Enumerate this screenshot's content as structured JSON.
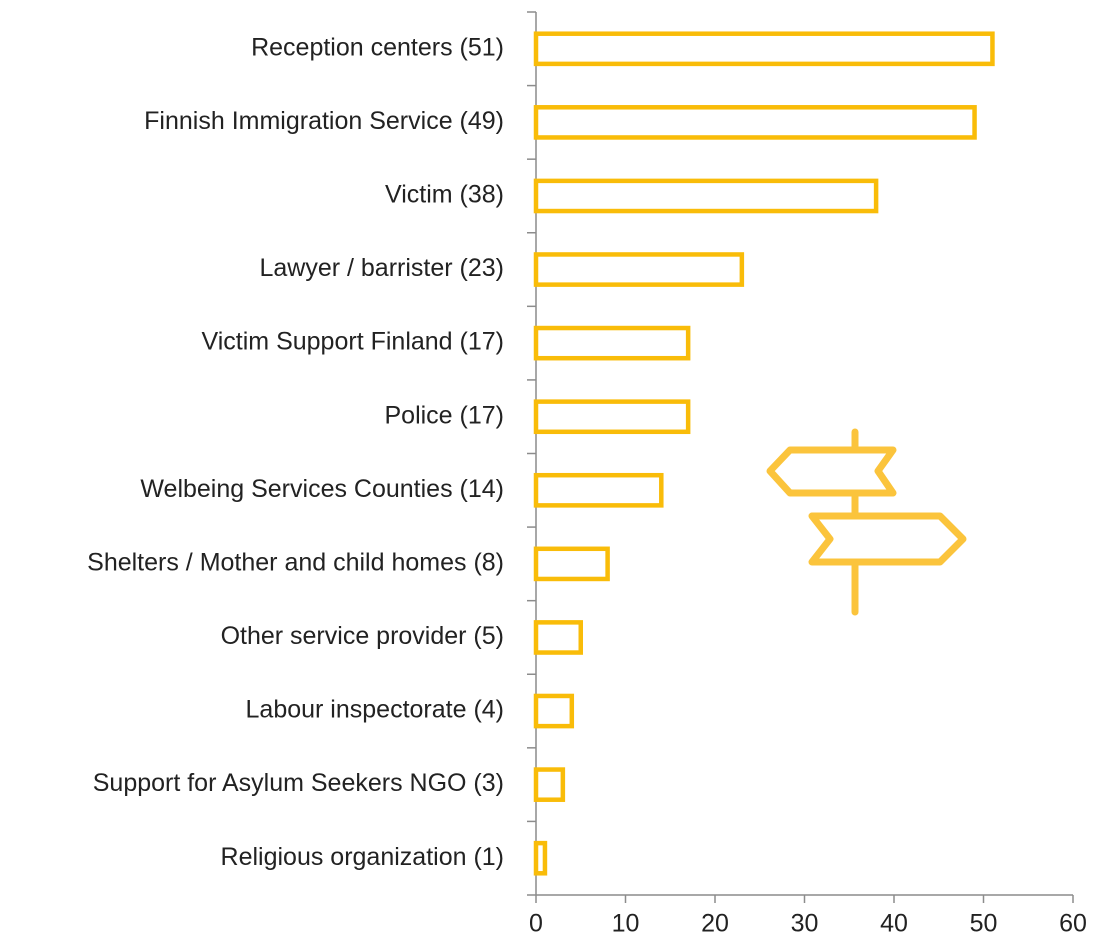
{
  "chart_data": {
    "type": "bar",
    "orientation": "horizontal",
    "categories": [
      "Reception centers (51)",
      "Finnish Immigration Service (49)",
      "Victim (38)",
      "Lawyer / barrister (23)",
      "Victim Support Finland (17)",
      "Police (17)",
      "Welbeing Services Counties (14)",
      "Shelters / Mother and child homes (8)",
      "Other service provider (5)",
      "Labour inspectorate (4)",
      "Support for Asylum Seekers NGO (3)",
      "Religious organization (1)"
    ],
    "values": [
      51,
      49,
      38,
      23,
      17,
      17,
      14,
      8,
      5,
      4,
      3,
      1
    ],
    "color": "#f9bc09",
    "xlim": [
      0,
      60
    ],
    "xticks": [
      0,
      10,
      20,
      30,
      40,
      50,
      60
    ],
    "grid": false
  }
}
